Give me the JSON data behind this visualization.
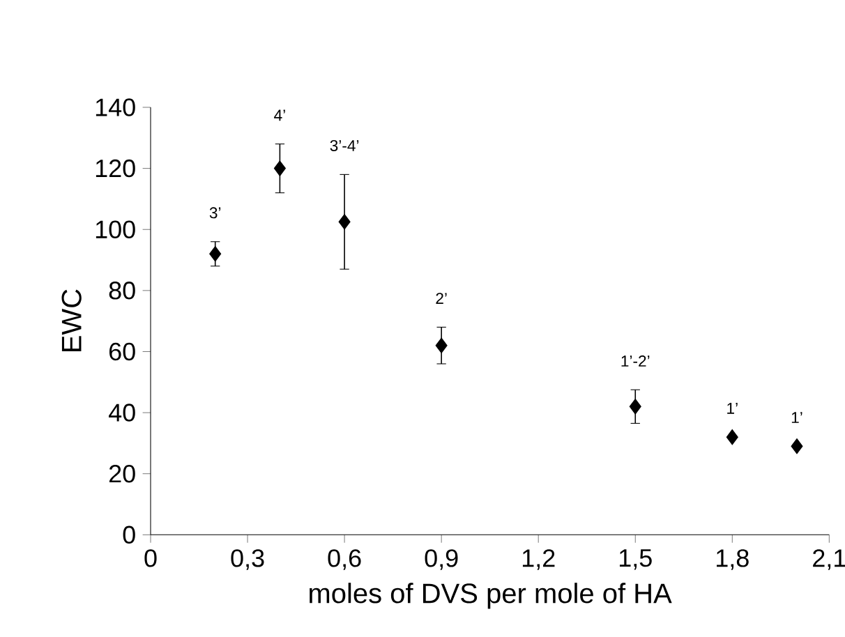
{
  "chart_data": {
    "type": "scatter",
    "xlabel": "moles of DVS per mole of HA",
    "ylabel": "EWC",
    "x": [
      0.2,
      0.4,
      0.6,
      0.9,
      1.5,
      1.8,
      2.0
    ],
    "values": [
      92,
      120,
      102.5,
      62,
      42,
      32,
      29
    ],
    "errors": [
      4,
      8,
      15.5,
      6,
      5.5,
      null,
      null
    ],
    "color": "#000000",
    "marker": "diamond",
    "xlim": [
      0,
      2.1
    ],
    "ylim": [
      0,
      140
    ],
    "xticks": [
      0,
      {
        "value": 0.3,
        "label": "0,3"
      },
      {
        "value": 0.6,
        "label": "0,6"
      },
      {
        "value": 0.9,
        "label": "0,9"
      },
      {
        "value": 1.2,
        "label": "1,2"
      },
      {
        "value": 1.5,
        "label": "1,5"
      },
      {
        "value": 1.8,
        "label": "1,8"
      },
      {
        "value": 2.1,
        "label": "2,1"
      }
    ],
    "yticks": [
      0,
      20,
      40,
      60,
      80,
      100,
      120,
      140
    ],
    "annotations": [
      "3’",
      "4’",
      "3’-4’",
      "2’",
      "1’-2’",
      "1’",
      "1’"
    ]
  }
}
